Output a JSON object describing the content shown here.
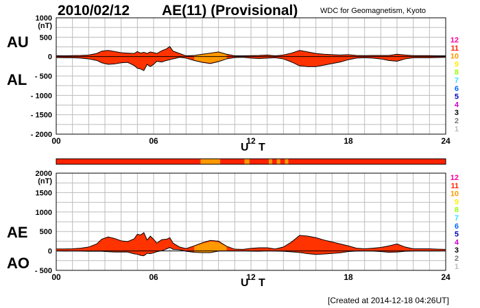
{
  "header": {
    "date": "2010/02/12",
    "title": "AE(11) (Provisional)",
    "source": "WDC for Geomagnetism, Kyoto"
  },
  "footer": {
    "created": "[Created at 2014-12-18 04:26UT]"
  },
  "colors": {
    "fill_main": "#ff3300",
    "fill_10": "#ff9900",
    "outline": "#000000",
    "grid": "#bbbbbb"
  },
  "station_legend": [
    {
      "label": "12",
      "color": "#ff0099"
    },
    {
      "label": "11",
      "color": "#ff2200"
    },
    {
      "label": "10",
      "color": "#ff9900"
    },
    {
      "label": "9",
      "color": "#ffee00"
    },
    {
      "label": "8",
      "color": "#99ff00"
    },
    {
      "label": "7",
      "color": "#33ddff"
    },
    {
      "label": "6",
      "color": "#0066ff"
    },
    {
      "label": "5",
      "color": "#0000bb"
    },
    {
      "label": "4",
      "color": "#cc00cc"
    },
    {
      "label": "3",
      "color": "#000000"
    },
    {
      "label": "2",
      "color": "#777777"
    },
    {
      "label": "1",
      "color": "#bbbbbb"
    }
  ],
  "chart_data": [
    {
      "type": "area",
      "name": "AU/AL panel",
      "series_labels": [
        "AU",
        "AL"
      ],
      "unit_label": "(nT)",
      "xlabel": "U T",
      "xlim": [
        0,
        24
      ],
      "xticks": [
        "00",
        "06",
        "12",
        "18",
        "24"
      ],
      "ylim": [
        -2000,
        1000
      ],
      "yticks": [
        "1000",
        "500",
        "0",
        "- 500",
        "- 1000",
        "- 1500",
        "- 2000"
      ],
      "grid": true,
      "x": [
        0,
        0.5,
        1,
        1.5,
        2,
        2.5,
        2.8,
        3.2,
        3.6,
        4,
        4.4,
        4.8,
        5,
        5.2,
        5.4,
        5.6,
        5.8,
        6,
        6.2,
        6.5,
        6.8,
        7,
        7.2,
        7.6,
        8,
        8.5,
        9,
        9.5,
        10,
        10.5,
        11,
        11.5,
        12,
        12.5,
        13,
        13.5,
        14,
        14.5,
        15,
        15.5,
        16,
        16.5,
        17,
        17.5,
        18,
        18.5,
        19,
        19.5,
        20,
        20.5,
        21,
        21.5,
        22,
        22.5,
        23,
        23.5,
        24
      ],
      "AU": [
        25,
        20,
        25,
        30,
        40,
        80,
        140,
        160,
        130,
        100,
        90,
        80,
        130,
        90,
        110,
        80,
        120,
        100,
        80,
        150,
        200,
        260,
        140,
        80,
        20,
        30,
        60,
        90,
        120,
        60,
        20,
        20,
        25,
        30,
        40,
        20,
        40,
        90,
        160,
        120,
        80,
        60,
        50,
        40,
        50,
        30,
        25,
        30,
        30,
        30,
        60,
        40,
        25,
        25,
        25,
        20,
        20
      ],
      "AL": [
        -25,
        -30,
        -30,
        -40,
        -60,
        -100,
        -160,
        -200,
        -190,
        -160,
        -150,
        -230,
        -300,
        -320,
        -360,
        -200,
        -260,
        -200,
        -120,
        -140,
        -100,
        -80,
        -60,
        -20,
        -40,
        -100,
        -150,
        -180,
        -130,
        -60,
        -25,
        -20,
        -40,
        -50,
        -40,
        -30,
        -60,
        -140,
        -240,
        -260,
        -260,
        -220,
        -180,
        -140,
        -80,
        -40,
        -30,
        -40,
        -60,
        -100,
        -120,
        -60,
        -30,
        -30,
        -30,
        -25,
        -20
      ]
    },
    {
      "type": "area",
      "name": "AE/AO panel",
      "series_labels": [
        "AE",
        "AO"
      ],
      "unit_label": "(nT)",
      "xlabel": "U T",
      "xlim": [
        0,
        24
      ],
      "xticks": [
        "00",
        "06",
        "12",
        "18",
        "24"
      ],
      "ylim": [
        -500,
        2000
      ],
      "yticks": [
        "2000",
        "1500",
        "1000",
        "500",
        "0",
        "- 500"
      ],
      "grid": true,
      "x": [
        0,
        0.5,
        1,
        1.5,
        2,
        2.5,
        2.8,
        3.2,
        3.6,
        4,
        4.4,
        4.8,
        5,
        5.2,
        5.4,
        5.6,
        5.8,
        6,
        6.2,
        6.5,
        6.8,
        7,
        7.2,
        7.6,
        8,
        8.5,
        9,
        9.5,
        10,
        10.5,
        11,
        11.5,
        12,
        12.5,
        13,
        13.5,
        14,
        14.5,
        15,
        15.5,
        16,
        16.5,
        17,
        17.5,
        18,
        18.5,
        19,
        19.5,
        20,
        20.5,
        21,
        21.5,
        22,
        22.5,
        23,
        23.5,
        24
      ],
      "AE": [
        50,
        50,
        55,
        70,
        100,
        180,
        300,
        360,
        320,
        260,
        240,
        310,
        430,
        410,
        470,
        280,
        380,
        300,
        200,
        290,
        300,
        340,
        200,
        100,
        60,
        130,
        210,
        270,
        250,
        120,
        45,
        40,
        65,
        80,
        80,
        50,
        100,
        230,
        400,
        380,
        340,
        280,
        230,
        180,
        130,
        70,
        55,
        70,
        90,
        130,
        180,
        100,
        55,
        55,
        55,
        45,
        40
      ],
      "AO": [
        0,
        -5,
        -3,
        -5,
        -10,
        -10,
        -10,
        -20,
        -30,
        -30,
        -30,
        -75,
        -85,
        -115,
        -125,
        -60,
        -70,
        -50,
        -20,
        5,
        50,
        90,
        40,
        30,
        -10,
        -35,
        -45,
        -45,
        -5,
        0,
        -3,
        0,
        -8,
        -10,
        0,
        -5,
        -10,
        -25,
        -40,
        -70,
        -90,
        -80,
        -65,
        -50,
        -15,
        -5,
        -3,
        -5,
        -15,
        -35,
        -30,
        -10,
        -3,
        -3,
        -3,
        -3,
        0
      ]
    }
  ],
  "contribution_bar": {
    "segments": [
      {
        "from": 0,
        "to": 8.9,
        "label": "11"
      },
      {
        "from": 8.9,
        "to": 10.1,
        "label": "10"
      },
      {
        "from": 10.1,
        "to": 11.6,
        "label": "11"
      },
      {
        "from": 11.6,
        "to": 11.9,
        "label": "10"
      },
      {
        "from": 11.9,
        "to": 13.1,
        "label": "11"
      },
      {
        "from": 13.1,
        "to": 13.3,
        "label": "10"
      },
      {
        "from": 13.3,
        "to": 13.6,
        "label": "11"
      },
      {
        "from": 13.6,
        "to": 13.8,
        "label": "10"
      },
      {
        "from": 13.8,
        "to": 14.1,
        "label": "11"
      },
      {
        "from": 14.1,
        "to": 14.3,
        "label": "10"
      },
      {
        "from": 14.3,
        "to": 24,
        "label": "11"
      }
    ]
  }
}
